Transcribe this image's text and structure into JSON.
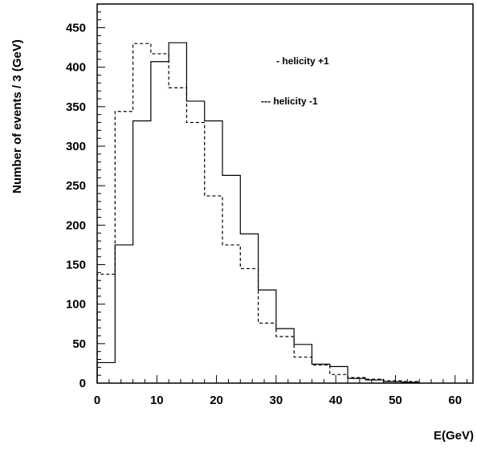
{
  "chart_data": {
    "type": "histogram",
    "xlabel": "E(GeV)",
    "ylabel": "Number of events / 3 (GeV)",
    "xlim": [
      0,
      63
    ],
    "ylim": [
      0,
      480
    ],
    "xticks": [
      0,
      10,
      20,
      30,
      40,
      50,
      60
    ],
    "yticks": [
      0,
      50,
      100,
      150,
      200,
      250,
      300,
      350,
      400,
      450
    ],
    "grid": false,
    "bin_width": 3,
    "bin_edges": [
      0,
      3,
      6,
      9,
      12,
      15,
      18,
      21,
      24,
      27,
      30,
      33,
      36,
      39,
      42,
      45,
      48,
      51,
      54
    ],
    "series": [
      {
        "name": "- helicity +1",
        "line_style": "solid",
        "values": [
          26,
          175,
          332,
          407,
          431,
          357,
          332,
          263,
          189,
          118,
          69,
          49,
          24,
          21,
          6,
          4,
          2,
          1
        ]
      },
      {
        "name": "--- helicity -1",
        "line_style": "dashed",
        "values": [
          138,
          344,
          430,
          417,
          374,
          330,
          237,
          175,
          145,
          76,
          59,
          33,
          23,
          11,
          7,
          5,
          3,
          2
        ]
      }
    ],
    "legend": "top-right"
  }
}
